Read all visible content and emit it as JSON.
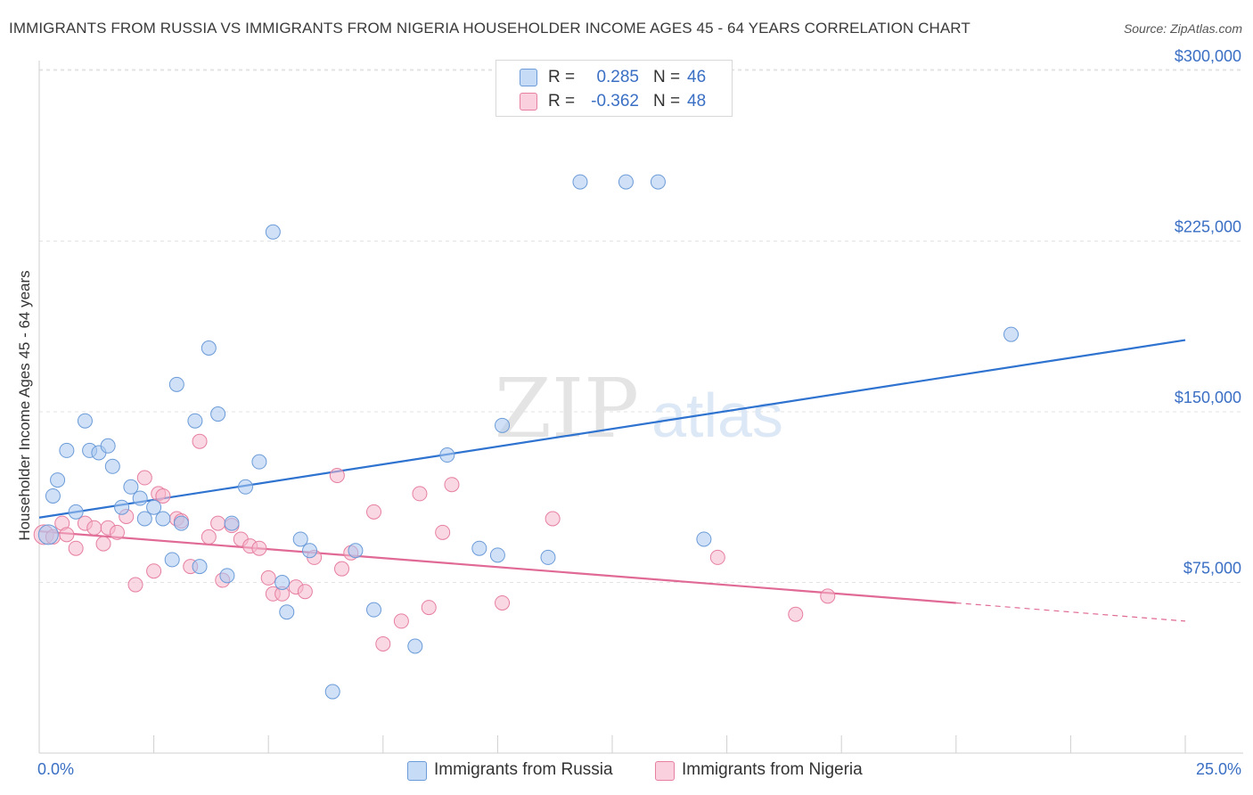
{
  "title": "IMMIGRANTS FROM RUSSIA VS IMMIGRANTS FROM NIGERIA HOUSEHOLDER INCOME AGES 45 - 64 YEARS CORRELATION CHART",
  "source": "Source: ZipAtlas.com",
  "watermark": {
    "zip": "ZIP",
    "atlas": "atlas"
  },
  "legend": {
    "rows": [
      {
        "r_label": "R =",
        "r_value": "0.285",
        "n_label": "N =",
        "n_value": "46",
        "color": "#a9c8f0"
      },
      {
        "r_label": "R =",
        "r_value": "-0.362",
        "n_label": "N =",
        "n_value": "48",
        "color": "#f6b8cc"
      }
    ]
  },
  "chart_data": {
    "type": "scatter",
    "title": "IMMIGRANTS FROM RUSSIA VS IMMIGRANTS FROM NIGERIA HOUSEHOLDER INCOME AGES 45 - 64 YEARS CORRELATION CHART",
    "xlabel": "",
    "ylabel": "Householder Income Ages 45 - 64 years",
    "xlim": [
      0,
      25
    ],
    "ylim": [
      0,
      315000
    ],
    "x_tick_labels": {
      "left": "0.0%",
      "right": "25.0%"
    },
    "y_ticks": [
      {
        "value": 75000,
        "label": "$75,000"
      },
      {
        "value": 150000,
        "label": "$150,000"
      },
      {
        "value": 225000,
        "label": "$225,000"
      },
      {
        "value": 300000,
        "label": "$300,000"
      }
    ],
    "grid": true,
    "legend_position": "top-center",
    "series": [
      {
        "name": "Immigrants from Russia",
        "color": "#a9c8f0",
        "stroke": "#6b9bd8",
        "trend_color": "#2f73d0",
        "trend": {
          "x0": 0.0,
          "y0": 103500,
          "x1": 25.0,
          "y1": 181500
        },
        "points": [
          [
            0.2,
            96000
          ],
          [
            0.3,
            113000
          ],
          [
            0.4,
            120000
          ],
          [
            0.6,
            133000
          ],
          [
            0.8,
            106000
          ],
          [
            1.0,
            146000
          ],
          [
            1.1,
            133000
          ],
          [
            1.3,
            132000
          ],
          [
            1.5,
            135000
          ],
          [
            1.6,
            126000
          ],
          [
            1.8,
            108000
          ],
          [
            2.0,
            117000
          ],
          [
            2.2,
            112000
          ],
          [
            2.3,
            103000
          ],
          [
            2.5,
            108000
          ],
          [
            2.7,
            103000
          ],
          [
            2.9,
            85000
          ],
          [
            3.0,
            162000
          ],
          [
            3.1,
            101000
          ],
          [
            3.4,
            146000
          ],
          [
            3.5,
            82000
          ],
          [
            3.7,
            178000
          ],
          [
            3.9,
            149000
          ],
          [
            4.1,
            78000
          ],
          [
            4.2,
            101000
          ],
          [
            4.5,
            117000
          ],
          [
            4.8,
            128000
          ],
          [
            5.1,
            229000
          ],
          [
            5.3,
            75000
          ],
          [
            5.4,
            62000
          ],
          [
            5.7,
            94000
          ],
          [
            5.9,
            89000
          ],
          [
            6.4,
            27000
          ],
          [
            6.9,
            89000
          ],
          [
            7.3,
            63000
          ],
          [
            8.2,
            47000
          ],
          [
            8.9,
            131000
          ],
          [
            9.6,
            90000
          ],
          [
            10.0,
            87000
          ],
          [
            10.1,
            144000
          ],
          [
            11.1,
            86000
          ],
          [
            11.8,
            251000
          ],
          [
            12.8,
            251000
          ],
          [
            13.5,
            251000
          ],
          [
            14.5,
            94000
          ],
          [
            21.2,
            184000
          ]
        ]
      },
      {
        "name": "Immigrants from Nigeria",
        "color": "#f6b8cc",
        "stroke": "#e67fa0",
        "trend_color": "#e06a95",
        "trend": {
          "x0": 0.0,
          "y0": 97500,
          "x1": 20.0,
          "y1": 66000
        },
        "trend_dashed": {
          "x0": 20.0,
          "y0": 66000,
          "x1": 25.0,
          "y1": 58000
        },
        "points": [
          [
            0.1,
            96000
          ],
          [
            0.3,
            95000
          ],
          [
            0.5,
            101000
          ],
          [
            0.6,
            96000
          ],
          [
            0.8,
            90000
          ],
          [
            1.0,
            101000
          ],
          [
            1.2,
            99000
          ],
          [
            1.4,
            92000
          ],
          [
            1.5,
            99000
          ],
          [
            1.7,
            97000
          ],
          [
            1.9,
            104000
          ],
          [
            2.1,
            74000
          ],
          [
            2.3,
            121000
          ],
          [
            2.5,
            80000
          ],
          [
            2.6,
            114000
          ],
          [
            2.7,
            113000
          ],
          [
            3.0,
            103000
          ],
          [
            3.1,
            102000
          ],
          [
            3.3,
            82000
          ],
          [
            3.5,
            137000
          ],
          [
            3.7,
            95000
          ],
          [
            3.9,
            101000
          ],
          [
            4.0,
            76000
          ],
          [
            4.2,
            100000
          ],
          [
            4.4,
            94000
          ],
          [
            4.6,
            91000
          ],
          [
            4.8,
            90000
          ],
          [
            5.0,
            77000
          ],
          [
            5.1,
            70000
          ],
          [
            5.3,
            70000
          ],
          [
            5.6,
            73000
          ],
          [
            5.8,
            71000
          ],
          [
            6.0,
            86000
          ],
          [
            6.5,
            122000
          ],
          [
            6.6,
            81000
          ],
          [
            6.8,
            88000
          ],
          [
            7.3,
            106000
          ],
          [
            7.5,
            48000
          ],
          [
            7.9,
            58000
          ],
          [
            8.3,
            114000
          ],
          [
            8.5,
            64000
          ],
          [
            8.8,
            97000
          ],
          [
            9.0,
            118000
          ],
          [
            10.1,
            66000
          ],
          [
            11.2,
            103000
          ],
          [
            14.8,
            86000
          ],
          [
            16.5,
            61000
          ],
          [
            17.2,
            69000
          ]
        ]
      }
    ]
  }
}
